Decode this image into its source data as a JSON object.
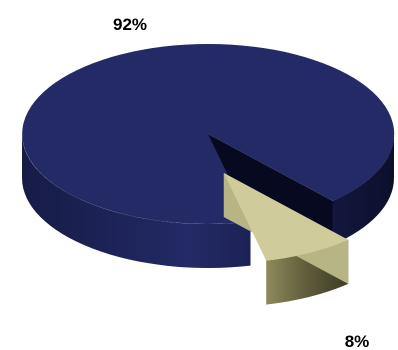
{
  "chart_data": {
    "type": "pie",
    "three_d": true,
    "exploded_slice": "8%",
    "slices": [
      {
        "label": "92%",
        "value": 92,
        "color": "#232a66"
      },
      {
        "label": "8%",
        "value": 8,
        "color": "#cfcb9a"
      }
    ]
  }
}
